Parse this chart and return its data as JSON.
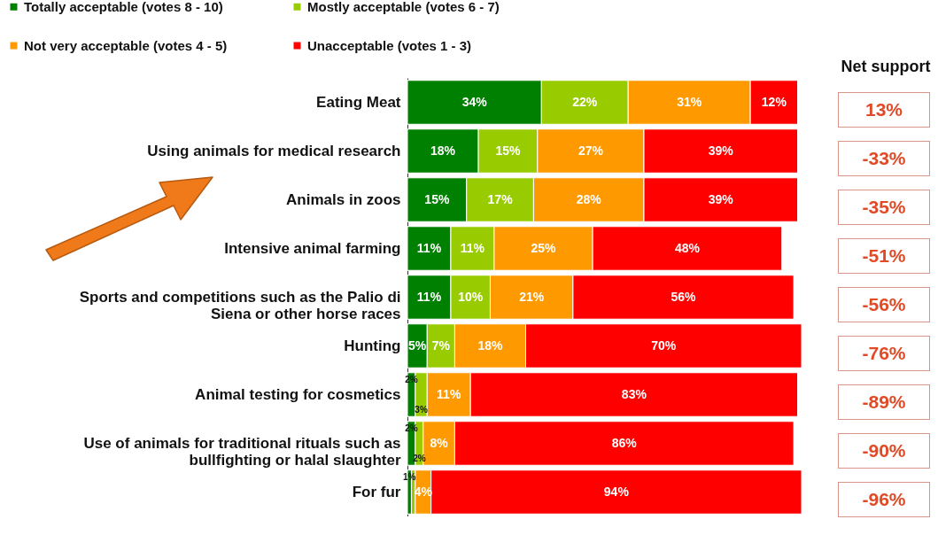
{
  "chart_data": [
    {
      "type": "bar",
      "orientation": "horizontal",
      "stacked": true,
      "legend": "top left",
      "categories": [
        "Eating Meat",
        "Using animals for medical research",
        "Animals in zoos",
        "Intensive animal farming",
        "Sports and competitions such as the Palio di Siena or other horse races",
        "Hunting",
        "Animal testing for cosmetics",
        "Use of animals for traditional rituals such as bullfighting or halal slaughter",
        "For fur"
      ],
      "series": [
        {
          "name": "Totally acceptable (votes 8 - 10)",
          "color": "#008000",
          "values": [
            34,
            18,
            15,
            11,
            11,
            5,
            2,
            2,
            1
          ],
          "value_labels": [
            "34%",
            "18%",
            "15%",
            "11%",
            "11%",
            "5%",
            "2%",
            "2%",
            "1%"
          ]
        },
        {
          "name": "Mostly acceptable (votes 6 - 7)",
          "color": "#99cc00",
          "values": [
            22,
            15,
            17,
            11,
            10,
            7,
            3,
            2,
            1
          ],
          "value_labels": [
            "22%",
            "15%",
            "17%",
            "11%",
            "10%",
            "7%",
            "3%",
            "2%",
            null
          ]
        },
        {
          "name": "Not very acceptable (votes 4 - 5)",
          "color": "#ff9900",
          "values": [
            31,
            27,
            28,
            25,
            21,
            18,
            11,
            8,
            4
          ],
          "value_labels": [
            "31%",
            "27%",
            "28%",
            "25%",
            "21%",
            "18%",
            "11%",
            "8%",
            "4%"
          ]
        },
        {
          "name": "Unacceptable (votes 1 - 3)",
          "color": "#ff0000",
          "values": [
            12,
            39,
            39,
            48,
            56,
            70,
            83,
            86,
            94
          ],
          "value_labels": [
            "12%",
            "39%",
            "39%",
            "48%",
            "56%",
            "70%",
            "83%",
            "86%",
            "94%"
          ]
        }
      ]
    },
    {
      "type": "other",
      "title": "Net support",
      "annotations": [
        "13%",
        "-33%",
        "-35%",
        "-51%",
        "-56%",
        "-76%",
        "-89%",
        "-90%",
        "-96%"
      ]
    }
  ]
}
